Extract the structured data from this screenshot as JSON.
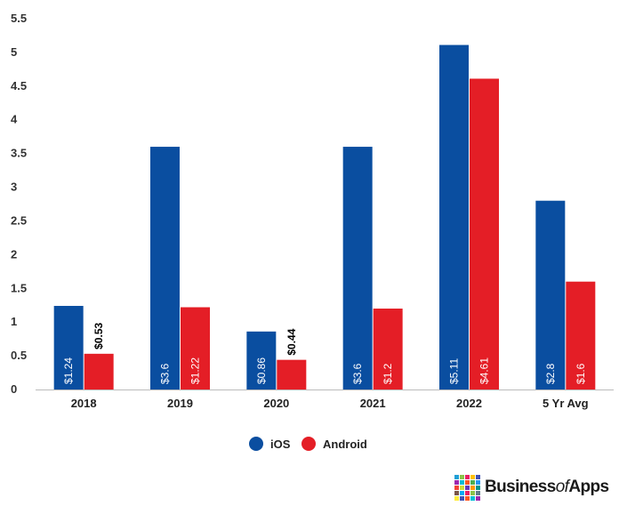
{
  "chart_data": {
    "type": "bar",
    "categories": [
      "2018",
      "2019",
      "2020",
      "2021",
      "2022",
      "5 Yr Avg"
    ],
    "series": [
      {
        "name": "iOS",
        "color": "#0a4ea0",
        "values": [
          1.24,
          3.6,
          0.86,
          3.6,
          5.11,
          2.8
        ],
        "labels": [
          "$1.24",
          "$3.6",
          "$0.86",
          "$3.6",
          "$5.11",
          "$2.8"
        ]
      },
      {
        "name": "Android",
        "color": "#e41e26",
        "values": [
          0.53,
          1.22,
          0.44,
          1.2,
          4.61,
          1.6
        ],
        "labels": [
          "$0.53",
          "$1.22",
          "$0.44",
          "$1.2",
          "$4.61",
          "$1.6"
        ]
      }
    ],
    "yticks": [
      "0",
      "0.5",
      "1",
      "1.5",
      "2",
      "2.5",
      "3",
      "3.5",
      "4",
      "4.5",
      "5",
      "5.5"
    ],
    "ylim": [
      0,
      5.5
    ],
    "grid": false,
    "legend": "bottom-center",
    "title": "",
    "xlabel": "",
    "ylabel": ""
  },
  "brand": {
    "name_part1": "Business",
    "name_part2": "of",
    "name_part3": "Apps",
    "colors": [
      "#1f9fd6",
      "#8bc34a",
      "#e91e63",
      "#ffc107",
      "#3f51b5",
      "#9c27b0",
      "#00bcd4",
      "#ff5722",
      "#4caf50",
      "#2196f3",
      "#f44336",
      "#cddc39",
      "#673ab7",
      "#ff9800",
      "#009688",
      "#795548",
      "#03a9f4",
      "#e91e63",
      "#8bc34a",
      "#607d8b",
      "#ffeb3b",
      "#3f51b5",
      "#ff5722",
      "#00bcd4",
      "#9c27b0"
    ]
  }
}
